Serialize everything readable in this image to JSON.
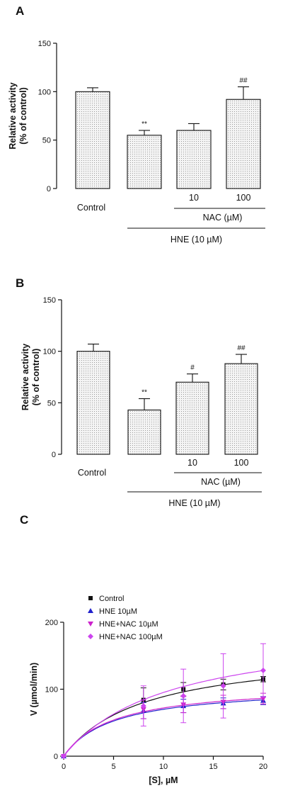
{
  "panels": {
    "a": {
      "label": "A"
    },
    "b": {
      "label": "B"
    },
    "c": {
      "label": "C"
    }
  },
  "chart_data": [
    {
      "type": "bar",
      "panel": "A",
      "ylabel_lines": [
        "Relative activity",
        "(% of control)"
      ],
      "ylim": [
        0,
        150
      ],
      "yticks": [
        "0",
        "50",
        "100",
        "150"
      ],
      "categories": [
        "Control",
        "",
        "10",
        "100"
      ],
      "values": [
        100,
        55,
        60,
        92
      ],
      "errors": [
        4,
        5,
        7,
        13
      ],
      "significance": [
        "",
        "**",
        "",
        "##"
      ],
      "group_labels": {
        "nac": "NAC (µM)",
        "hne": "HNE (10 µM)"
      },
      "fill": "dotted grey"
    },
    {
      "type": "bar",
      "panel": "B",
      "ylabel_lines": [
        "Relative activity",
        "(% of control)"
      ],
      "ylim": [
        0,
        150
      ],
      "yticks": [
        "0",
        "50",
        "100",
        "150"
      ],
      "categories": [
        "Control",
        "",
        "10",
        "100"
      ],
      "values": [
        100,
        43,
        70,
        88
      ],
      "errors": [
        7,
        11,
        8,
        9
      ],
      "significance": [
        "",
        "**",
        "#",
        "##"
      ],
      "group_labels": {
        "nac": "NAC (µM)",
        "hne": "HNE (10 µM)"
      },
      "fill": "dotted grey"
    },
    {
      "type": "scatter",
      "panel": "C",
      "xlabel": "[S], µM",
      "ylabel": "V (µmol/min)",
      "xlim": [
        0,
        20
      ],
      "ylim": [
        0,
        200
      ],
      "xticks": [
        "0",
        "5",
        "10",
        "15",
        "20"
      ],
      "yticks": [
        "0",
        "100",
        "200"
      ],
      "x": [
        0,
        8,
        12,
        16,
        20
      ],
      "series": [
        {
          "name": "Control",
          "color": "#111111",
          "marker": "square",
          "values": [
            0,
            84,
            100,
            107,
            115
          ],
          "errors": [
            0,
            18,
            10,
            8,
            4
          ],
          "fit": {
            "vmax": 160,
            "km": 8.0
          }
        },
        {
          "name": "HNE 10µM",
          "color": "#2222cc",
          "marker": "triangle-up",
          "values": [
            0,
            68,
            75,
            79,
            83
          ],
          "errors": [
            0,
            12,
            10,
            8,
            6
          ],
          "fit": {
            "vmax": 105,
            "km": 5.0
          }
        },
        {
          "name": "HNE+NAC 10µM",
          "color": "#cc22cc",
          "marker": "triangle-down",
          "values": [
            0,
            70,
            77,
            81,
            86
          ],
          "errors": [
            0,
            14,
            12,
            10,
            8
          ],
          "fit": {
            "vmax": 108,
            "km": 5.0
          }
        },
        {
          "name": "HNE+NAC 100µM",
          "color": "#cc44ee",
          "marker": "diamond",
          "values": [
            0,
            75,
            90,
            105,
            128
          ],
          "errors": [
            0,
            30,
            40,
            48,
            40
          ],
          "fit": {
            "vmax": 195,
            "km": 10.5
          }
        }
      ],
      "legend_position": "top-left"
    }
  ]
}
